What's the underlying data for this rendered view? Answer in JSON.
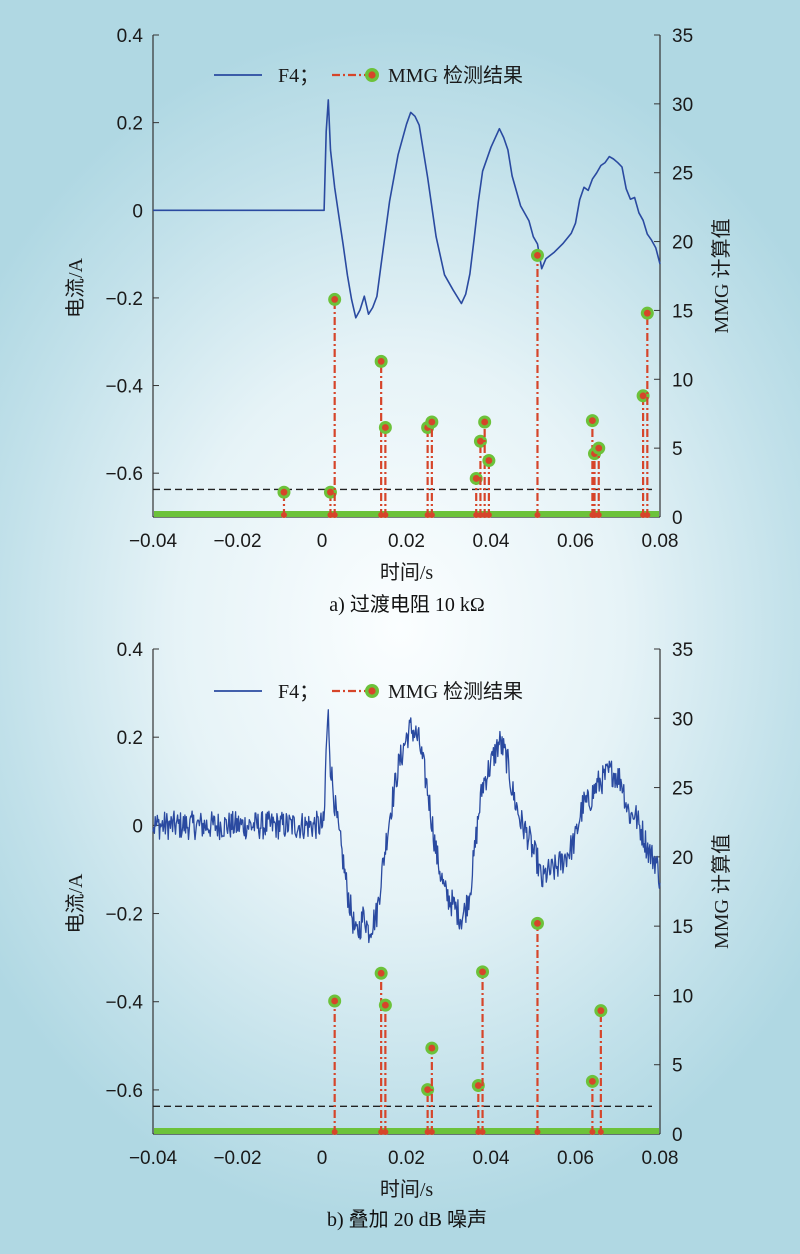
{
  "chart_data": [
    {
      "type": "line",
      "caption": "a) 过渡电阻 10 kΩ",
      "xlabel": "时间/s",
      "ylabel": "电流/A",
      "y2label": "MMG 计算值",
      "xlim": [
        -0.04,
        0.08
      ],
      "ylim": [
        -0.7,
        0.4
      ],
      "y2lim": [
        0,
        35
      ],
      "xticks": [
        "−0.04",
        "−0.02",
        "0",
        "0.02",
        "0.04",
        "0.06",
        "0.08"
      ],
      "yticks": [
        "0.4",
        "0.2",
        "0",
        "−0.2",
        "−0.4",
        "−0.6"
      ],
      "y2ticks": [
        "35",
        "30",
        "25",
        "20",
        "15",
        "10",
        "5",
        "0"
      ],
      "legend": {
        "placement": "top",
        "entries": [
          "F4；",
          "MMG 检测结果"
        ]
      },
      "threshold": 2,
      "noise": false,
      "series": [
        {
          "name": "F4；",
          "color": "#2a4aa0",
          "x": [
            -0.04,
            0.0005,
            0.001,
            0.0015,
            0.002,
            0.003,
            0.004,
            0.005,
            0.006,
            0.007,
            0.008,
            0.009,
            0.01,
            0.011,
            0.012,
            0.013,
            0.014,
            0.016,
            0.018,
            0.02,
            0.021,
            0.022,
            0.023,
            0.025,
            0.027,
            0.029,
            0.031,
            0.033,
            0.034,
            0.035,
            0.036,
            0.037,
            0.038,
            0.04,
            0.042,
            0.043,
            0.044,
            0.045,
            0.047,
            0.049,
            0.05,
            0.051,
            0.052,
            0.053,
            0.055,
            0.057,
            0.059,
            0.06,
            0.061,
            0.062,
            0.063,
            0.064,
            0.065,
            0.066,
            0.067,
            0.068,
            0.069,
            0.07,
            0.071,
            0.072,
            0.073,
            0.074,
            0.075,
            0.076,
            0.077,
            0.078,
            0.079,
            0.08
          ],
          "y": [
            0,
            0,
            0.18,
            0.25,
            0.14,
            0.05,
            -0.02,
            -0.08,
            -0.15,
            -0.2,
            -0.25,
            -0.23,
            -0.2,
            -0.24,
            -0.22,
            -0.2,
            -0.12,
            0.02,
            0.13,
            0.2,
            0.22,
            0.21,
            0.19,
            0.08,
            -0.06,
            -0.15,
            -0.18,
            -0.21,
            -0.19,
            -0.15,
            -0.07,
            0.02,
            0.09,
            0.14,
            0.19,
            0.17,
            0.14,
            0.08,
            0.01,
            -0.03,
            -0.06,
            -0.08,
            -0.13,
            -0.11,
            -0.1,
            -0.08,
            -0.05,
            -0.03,
            0.02,
            0.05,
            0.05,
            0.07,
            0.09,
            0.1,
            0.11,
            0.12,
            0.12,
            0.11,
            0.1,
            0.05,
            0.02,
            0.03,
            0.0,
            -0.02,
            -0.05,
            -0.07,
            -0.08,
            -0.12
          ]
        },
        {
          "name": "MMG 检测结果",
          "color": "#d6452a",
          "marker": "#6cc23a",
          "stems_x": [
            -0.009,
            0.002,
            0.003,
            0.014,
            0.015,
            0.025,
            0.026,
            0.0365,
            0.0375,
            0.0385,
            0.0395,
            0.051,
            0.064,
            0.0645,
            0.0655,
            0.076,
            0.077
          ],
          "stems_y": [
            1.8,
            1.8,
            15.8,
            11.3,
            6.5,
            6.5,
            6.9,
            2.8,
            5.5,
            6.9,
            4.1,
            19.0,
            7.0,
            4.6,
            5.0,
            8.8,
            14.8
          ]
        }
      ]
    },
    {
      "type": "line",
      "caption": "b) 叠加 20 dB 噪声",
      "xlabel": "时间/s",
      "ylabel": "电流/A",
      "y2label": "MMG 计算值",
      "xlim": [
        -0.04,
        0.08
      ],
      "ylim": [
        -0.7,
        0.4
      ],
      "y2lim": [
        0,
        35
      ],
      "xticks": [
        "−0.04",
        "−0.02",
        "0",
        "0.02",
        "0.04",
        "0.06",
        "0.08"
      ],
      "yticks": [
        "0.4",
        "0.2",
        "0",
        "−0.2",
        "−0.4",
        "−0.6"
      ],
      "y2ticks": [
        "35",
        "30",
        "25",
        "20",
        "15",
        "10",
        "5",
        "0"
      ],
      "legend": {
        "placement": "top",
        "entries": [
          "F4；",
          "MMG 检测结果"
        ]
      },
      "threshold": 2,
      "noise": true,
      "series": [
        {
          "name": "F4；",
          "color": "#2a4aa0",
          "x": [
            -0.04,
            0.0005,
            0.001,
            0.0015,
            0.002,
            0.003,
            0.004,
            0.005,
            0.006,
            0.007,
            0.008,
            0.009,
            0.01,
            0.011,
            0.012,
            0.013,
            0.014,
            0.016,
            0.018,
            0.02,
            0.021,
            0.022,
            0.023,
            0.025,
            0.027,
            0.029,
            0.031,
            0.033,
            0.034,
            0.035,
            0.036,
            0.037,
            0.038,
            0.04,
            0.042,
            0.043,
            0.044,
            0.045,
            0.047,
            0.049,
            0.05,
            0.051,
            0.052,
            0.053,
            0.055,
            0.057,
            0.059,
            0.06,
            0.061,
            0.062,
            0.063,
            0.064,
            0.065,
            0.066,
            0.067,
            0.068,
            0.069,
            0.07,
            0.071,
            0.072,
            0.073,
            0.074,
            0.075,
            0.076,
            0.077,
            0.078,
            0.079,
            0.08
          ],
          "y": [
            0,
            0,
            0.18,
            0.25,
            0.14,
            0.05,
            -0.02,
            -0.08,
            -0.15,
            -0.2,
            -0.25,
            -0.23,
            -0.2,
            -0.24,
            -0.22,
            -0.2,
            -0.12,
            0.02,
            0.13,
            0.2,
            0.22,
            0.21,
            0.19,
            0.08,
            -0.06,
            -0.15,
            -0.18,
            -0.21,
            -0.19,
            -0.15,
            -0.07,
            0.02,
            0.09,
            0.14,
            0.19,
            0.17,
            0.14,
            0.08,
            0.01,
            -0.03,
            -0.06,
            -0.08,
            -0.13,
            -0.11,
            -0.1,
            -0.08,
            -0.05,
            -0.03,
            0.02,
            0.05,
            0.05,
            0.07,
            0.09,
            0.1,
            0.11,
            0.12,
            0.12,
            0.11,
            0.1,
            0.05,
            0.02,
            0.03,
            0.0,
            -0.02,
            -0.05,
            -0.07,
            -0.08,
            -0.12
          ]
        },
        {
          "name": "MMG 检测结果",
          "color": "#d6452a",
          "marker": "#6cc23a",
          "stems_x": [
            0.003,
            0.014,
            0.015,
            0.025,
            0.026,
            0.037,
            0.038,
            0.051,
            0.064,
            0.066
          ],
          "stems_y": [
            9.6,
            11.6,
            9.3,
            3.2,
            6.2,
            3.5,
            11.7,
            15.2,
            3.8,
            8.9
          ]
        }
      ]
    }
  ]
}
